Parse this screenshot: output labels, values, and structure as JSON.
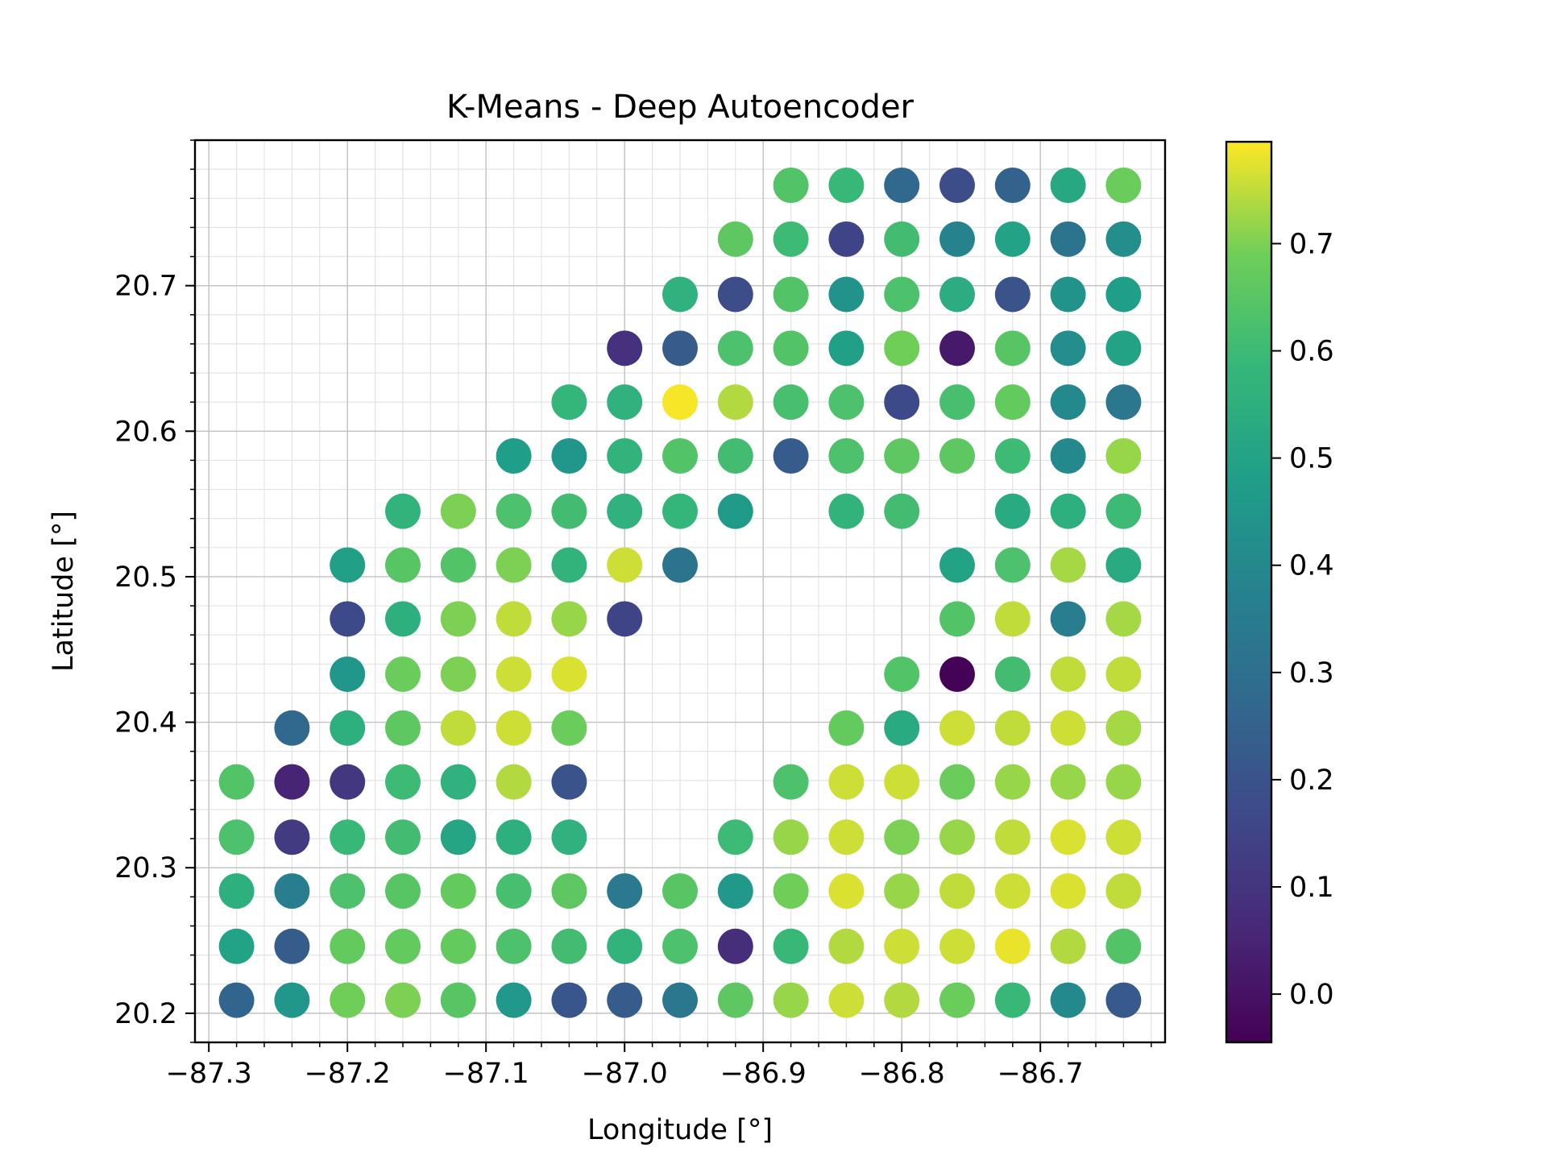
{
  "chart_data": {
    "type": "scatter",
    "title": "K-Means - Deep Autoencoder",
    "xlabel": "Longitude [°]",
    "ylabel": "Latitude [°]",
    "xlim": [
      -87.31,
      -86.61
    ],
    "ylim": [
      20.18,
      20.8
    ],
    "x_ticks": [
      "−87.3",
      "−87.2",
      "−87.1",
      "−87.0",
      "−86.9",
      "−86.8",
      "−86.7"
    ],
    "y_ticks": [
      "20.2",
      "20.3",
      "20.4",
      "20.5",
      "20.6",
      "20.7"
    ],
    "grid": true,
    "colormap": "viridis",
    "colorbar": {
      "range": [
        -0.045,
        0.795
      ],
      "ticks": [
        "0.0",
        "0.1",
        "0.2",
        "0.3",
        "0.4",
        "0.5",
        "0.6",
        "0.7"
      ]
    },
    "longitudes": [
      -87.28,
      -87.24,
      -87.2,
      -87.16,
      -87.12,
      -87.08,
      -87.04,
      -87.0,
      -86.96,
      -86.92,
      -86.88,
      -86.84,
      -86.8,
      -86.76,
      -86.72,
      -86.68,
      -86.64
    ],
    "latitudes": [
      20.769,
      20.732,
      20.694,
      20.657,
      20.62,
      20.583,
      20.545,
      20.508,
      20.471,
      20.433,
      20.396,
      20.359,
      20.321,
      20.284,
      20.246,
      20.209
    ],
    "grid_values": [
      [
        null,
        null,
        null,
        null,
        null,
        null,
        null,
        null,
        null,
        null,
        0.64,
        0.59,
        0.27,
        0.18,
        0.25,
        0.52,
        0.68
      ],
      [
        null,
        null,
        null,
        null,
        null,
        null,
        null,
        null,
        null,
        0.66,
        0.6,
        0.15,
        0.61,
        0.38,
        0.5,
        0.32,
        0.42
      ],
      [
        null,
        null,
        null,
        null,
        null,
        null,
        null,
        null,
        0.56,
        0.18,
        0.64,
        0.44,
        0.63,
        0.54,
        0.2,
        0.44,
        0.48
      ],
      [
        null,
        null,
        null,
        null,
        null,
        null,
        null,
        0.09,
        0.23,
        0.63,
        0.64,
        0.49,
        0.69,
        0.02,
        0.65,
        0.42,
        0.5
      ],
      [
        null,
        null,
        null,
        null,
        null,
        null,
        0.58,
        0.56,
        0.79,
        0.74,
        0.62,
        0.63,
        0.17,
        0.62,
        0.67,
        0.4,
        0.33
      ],
      [
        null,
        null,
        null,
        null,
        null,
        0.48,
        0.45,
        0.57,
        0.64,
        0.61,
        0.23,
        0.63,
        0.66,
        0.66,
        0.6,
        0.4,
        0.72
      ],
      [
        null,
        null,
        null,
        0.57,
        0.7,
        0.63,
        0.61,
        0.56,
        0.58,
        0.47,
        null,
        0.57,
        0.61,
        null,
        0.53,
        0.55,
        0.6
      ],
      [
        null,
        null,
        0.49,
        0.65,
        0.64,
        0.7,
        0.57,
        0.76,
        0.32,
        null,
        null,
        null,
        null,
        0.5,
        0.63,
        0.73,
        0.53
      ],
      [
        null,
        null,
        0.17,
        0.55,
        0.7,
        0.75,
        0.72,
        0.15,
        null,
        null,
        null,
        null,
        null,
        0.64,
        0.75,
        0.36,
        0.73
      ],
      [
        null,
        null,
        0.45,
        0.68,
        0.7,
        0.76,
        0.77,
        null,
        null,
        null,
        null,
        null,
        0.64,
        -0.04,
        0.61,
        0.75,
        0.75
      ],
      [
        null,
        0.27,
        0.55,
        0.66,
        0.75,
        0.76,
        0.68,
        null,
        null,
        null,
        null,
        0.67,
        0.53,
        0.76,
        0.75,
        0.76,
        0.73
      ],
      [
        0.64,
        0.05,
        0.11,
        0.6,
        0.56,
        0.74,
        0.2,
        null,
        null,
        null,
        0.63,
        0.76,
        0.76,
        0.68,
        0.72,
        0.72,
        0.72
      ],
      [
        0.63,
        0.12,
        0.59,
        0.61,
        0.51,
        0.55,
        0.56,
        null,
        null,
        0.6,
        0.72,
        0.76,
        0.7,
        0.72,
        0.75,
        0.77,
        0.76
      ],
      [
        0.55,
        0.36,
        0.63,
        0.65,
        0.67,
        0.62,
        0.66,
        0.34,
        0.65,
        0.46,
        0.69,
        0.77,
        0.72,
        0.75,
        0.76,
        0.77,
        0.75
      ],
      [
        0.5,
        0.23,
        0.67,
        0.67,
        0.67,
        0.63,
        0.61,
        0.57,
        0.63,
        0.08,
        0.59,
        0.74,
        0.76,
        0.76,
        0.78,
        0.74,
        0.64
      ],
      [
        0.26,
        0.45,
        0.69,
        0.7,
        0.65,
        0.46,
        0.21,
        0.23,
        0.33,
        0.66,
        0.72,
        0.76,
        0.74,
        0.68,
        0.59,
        0.4,
        0.22
      ]
    ]
  }
}
